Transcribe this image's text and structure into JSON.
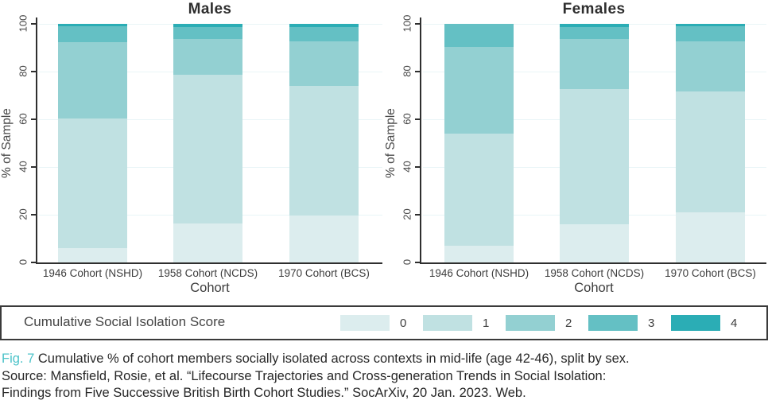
{
  "legend": {
    "title": "Cumulative Social Isolation Score",
    "entries": [
      {
        "label": "0",
        "color": "#dcedee"
      },
      {
        "label": "1",
        "color": "#c0e1e2"
      },
      {
        "label": "2",
        "color": "#93d0d2"
      },
      {
        "label": "3",
        "color": "#64c0c4"
      },
      {
        "label": "4",
        "color": "#2badb5"
      }
    ]
  },
  "chart_data": {
    "type": "bar",
    "stacked": true,
    "unit": "percent",
    "ylabel": "% of Sample",
    "xlabel": "Cohort",
    "ylim": [
      0,
      100
    ],
    "yticks": [
      0,
      20,
      40,
      60,
      80,
      100
    ],
    "grid": "horizontal-light",
    "legend_position": "bottom-box",
    "categories": [
      "1946 Cohort (NSHD)",
      "1958 Cohort (NCDS)",
      "1970 Cohort (BCS)"
    ],
    "panels": [
      {
        "title": "Males",
        "series": [
          {
            "name": "0",
            "values": [
              6.0,
              16.3,
              19.8
            ]
          },
          {
            "name": "1",
            "values": [
              54.5,
              62.5,
              54.2
            ]
          },
          {
            "name": "2",
            "values": [
              32.0,
              14.7,
              18.8
            ]
          },
          {
            "name": "3",
            "values": [
              6.5,
              5.3,
              5.8
            ]
          },
          {
            "name": "4",
            "values": [
              1.0,
              1.2,
              1.4
            ]
          }
        ]
      },
      {
        "title": "Females",
        "series": [
          {
            "name": "0",
            "values": [
              7.0,
              15.9,
              21.0
            ]
          },
          {
            "name": "1",
            "values": [
              47.0,
              56.7,
              50.6
            ]
          },
          {
            "name": "2",
            "values": [
              36.4,
              21.2,
              21.0
            ]
          },
          {
            "name": "3",
            "values": [
              9.6,
              4.9,
              6.4
            ]
          },
          {
            "name": "4",
            "values": [
              0.0,
              1.3,
              1.0
            ]
          }
        ]
      }
    ]
  },
  "caption": {
    "fig_label": "Fig. 7",
    "line1": "Cumulative % of cohort members socially isolated across contexts in mid-life (age 42-46), split by sex.",
    "line2": "Source: Mansfield, Rosie, et al. “Lifecourse Trajectories and Cross-generation Trends in Social Isolation:",
    "line3": "Findings from Five Successive British Birth Cohort Studies.” SocArXiv, 20 Jan. 2023. Web."
  }
}
